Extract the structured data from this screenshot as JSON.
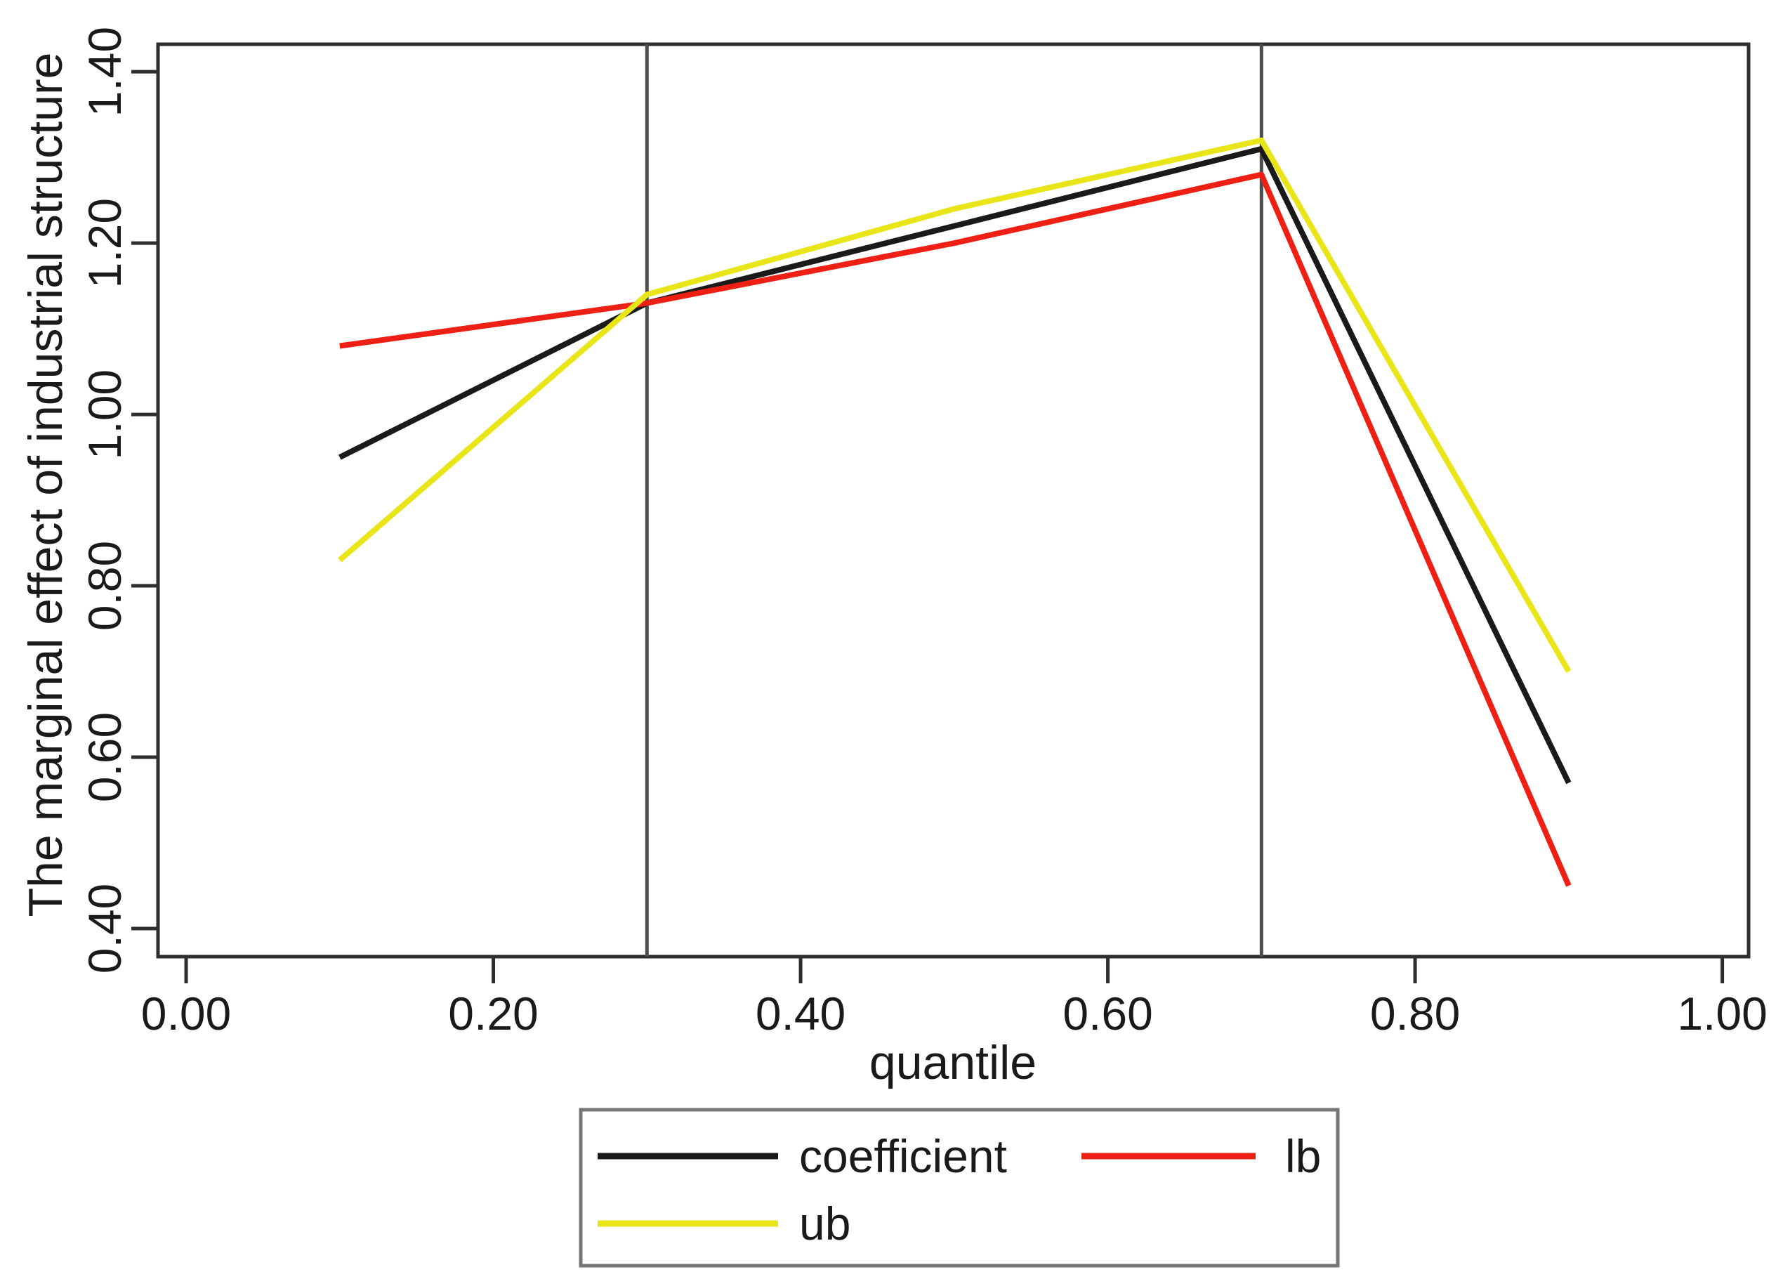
{
  "chart_data": {
    "type": "line",
    "x": [
      0.1,
      0.3,
      0.5,
      0.7,
      0.9
    ],
    "series": [
      {
        "name": "coefficient",
        "color": "#1a1a1a",
        "values": [
          0.95,
          1.13,
          1.22,
          1.31,
          0.57
        ]
      },
      {
        "name": "lb",
        "color": "#ee2015",
        "values": [
          1.08,
          1.13,
          1.2,
          1.28,
          0.45
        ]
      },
      {
        "name": "ub",
        "color": "#e8e619",
        "values": [
          0.83,
          1.14,
          1.24,
          1.32,
          0.7
        ]
      }
    ],
    "title": "",
    "xlabel": "quantile",
    "ylabel": "The marginal effect of industrial structure",
    "x_ticks": [
      0.0,
      0.2,
      0.4,
      0.6,
      0.8,
      1.0
    ],
    "x_tick_labels": [
      "0.00",
      "0.20",
      "0.40",
      "0.60",
      "0.80",
      "1.00"
    ],
    "y_ticks": [
      1.4,
      1.2,
      1.0,
      0.8,
      0.6,
      0.4
    ],
    "y_tick_labels": [
      "1.40",
      "1.20",
      "1.00",
      "0.80",
      "0.60",
      "0.40"
    ],
    "xlim": [
      -0.0183,
      1.0171
    ],
    "ylim": [
      0.3672,
      1.4321
    ],
    "reference_lines_x": [
      0.3,
      0.7
    ],
    "grid": false,
    "legend_position": "bottom",
    "legend": [
      {
        "label": "coefficient",
        "color": "#1a1a1a"
      },
      {
        "label": "lb",
        "color": "#ee2015"
      },
      {
        "label": "ub",
        "color": "#e8e619"
      }
    ],
    "frame_color": "#2e2e2e",
    "reference_line_color": "#4d4d4d",
    "legend_border_color": "#777777"
  }
}
